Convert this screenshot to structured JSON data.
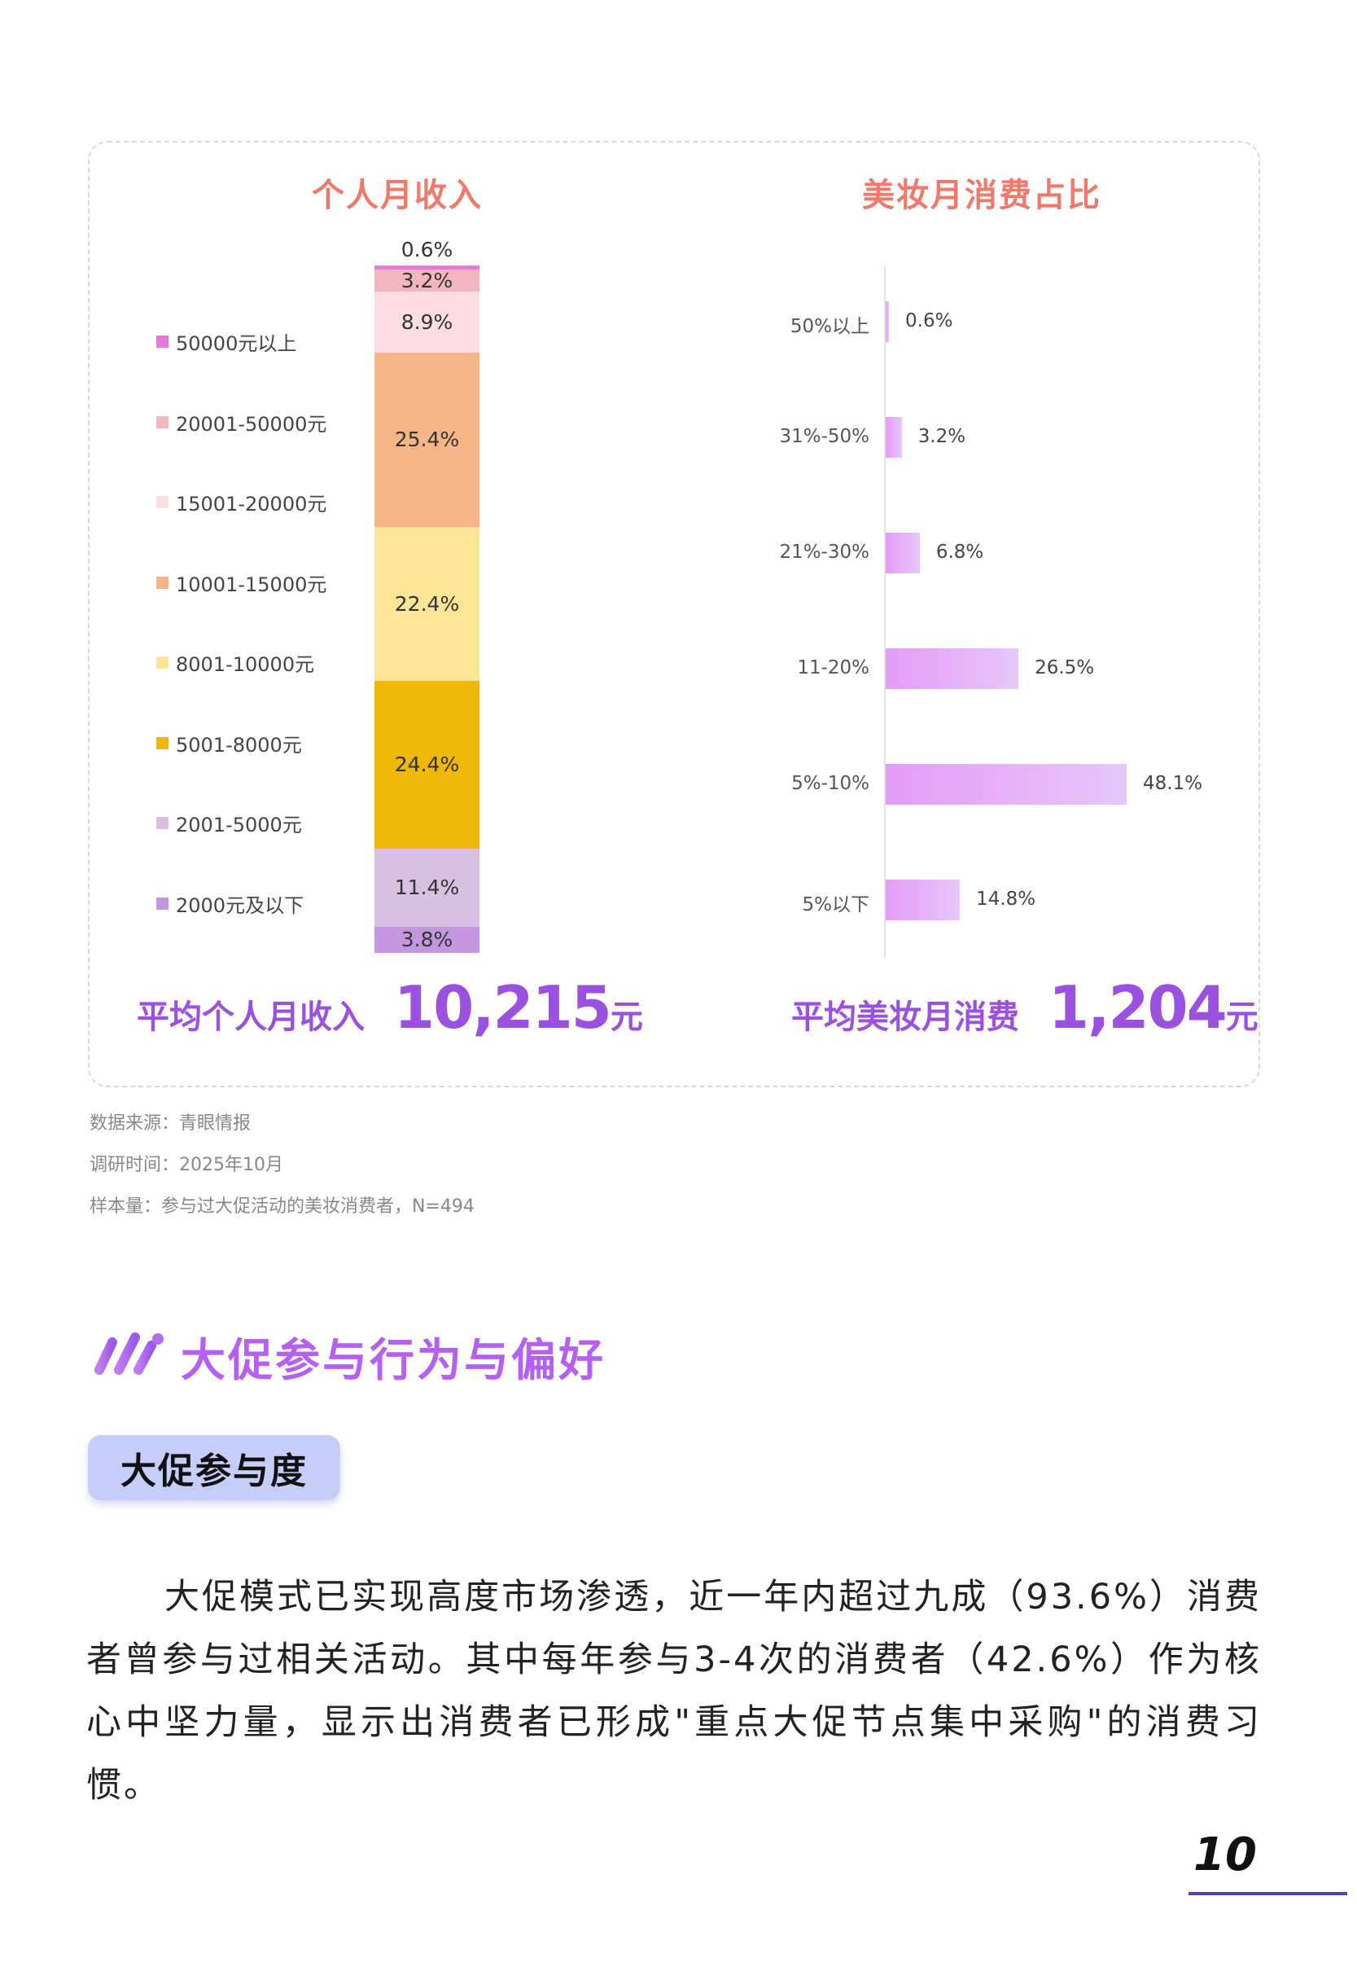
{
  "income_panel": {
    "title": "个人月收入",
    "summary_label": "平均个人月收入",
    "summary_value": "10,215",
    "summary_unit": "元"
  },
  "spend_panel": {
    "title": "美妆月消费占比",
    "summary_label": "平均美妆月消费",
    "summary_value": "1,204",
    "summary_unit": "元"
  },
  "chart_data": [
    {
      "type": "bar",
      "subtype": "stacked-100",
      "title": "个人月收入",
      "categories": [
        "50000元以上",
        "20001-50000元",
        "15001-20000元",
        "10001-15000元",
        "8001-10000元",
        "5001-8000元",
        "2001-5000元",
        "2000元及以下"
      ],
      "values": [
        0.6,
        3.2,
        8.9,
        25.4,
        22.4,
        24.4,
        11.4,
        3.8
      ],
      "labels": [
        "0.6%",
        "3.2%",
        "8.9%",
        "25.4%",
        "22.4%",
        "24.4%",
        "11.4%",
        "3.8%"
      ],
      "colors": [
        "#e47ad8",
        "#f2b6c2",
        "#fbdde3",
        "#f5b586",
        "#fde597",
        "#efb708",
        "#d7c0e2",
        "#c496e0"
      ],
      "legend_position": "left"
    },
    {
      "type": "bar",
      "orientation": "horizontal",
      "title": "美妆月消费占比",
      "categories": [
        "50%以上",
        "31%-50%",
        "21%-30%",
        "11-20%",
        "5%-10%",
        "5%以下"
      ],
      "values": [
        0.6,
        3.2,
        6.8,
        26.5,
        48.1,
        14.8
      ],
      "labels": [
        "0.6%",
        "3.2%",
        "6.8%",
        "26.5%",
        "48.1%",
        "14.8%"
      ],
      "bar_color": "#e49cf6",
      "xlim": [
        0,
        50
      ],
      "grid": false
    }
  ],
  "source_notes": [
    "数据来源：青眼情报",
    "调研时间：2025年10月",
    "样本量：参与过大促活动的美妆消费者，N=494"
  ],
  "section": {
    "title": "大促参与行为与偏好",
    "icon": "double-slash-icon",
    "subsection_title": "大促参与度",
    "body": "大促模式已实现高度市场渗透，近一年内超过九成（93.6%）消费者曾参与过相关活动。其中每年参与3-4次的消费者（42.6%）作为核心中坚力量，显示出消费者已形成\"重点大促节点集中采购\"的消费习惯。"
  },
  "page_number": "10"
}
